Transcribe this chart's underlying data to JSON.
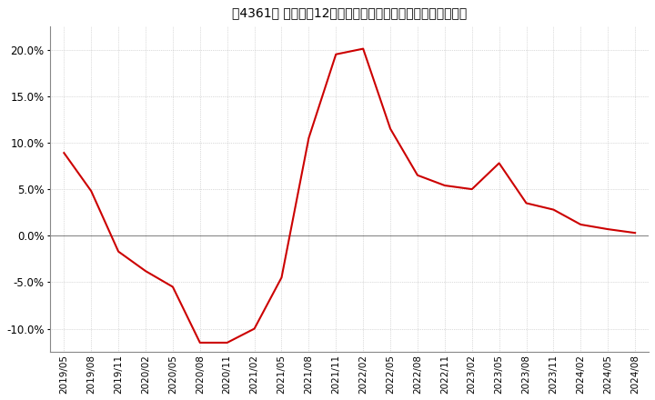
{
  "title": "［4361］ 売上高の12か月移動合計の対前年同期増減率の推移",
  "line_color": "#cc0000",
  "bg_color": "#ffffff",
  "plot_bg_color": "#ffffff",
  "grid_color": "#bbbbbb",
  "zero_line_color": "#888888",
  "ylim": [
    -0.125,
    0.225
  ],
  "yticks": [
    -0.1,
    -0.05,
    0.0,
    0.05,
    0.1,
    0.15,
    0.2
  ],
  "x_labels": [
    "2019/05",
    "2019/08",
    "2019/11",
    "2020/02",
    "2020/05",
    "2020/08",
    "2020/11",
    "2021/02",
    "2021/05",
    "2021/08",
    "2021/11",
    "2022/02",
    "2022/05",
    "2022/08",
    "2022/11",
    "2023/02",
    "2023/05",
    "2023/08",
    "2023/11",
    "2024/02",
    "2024/05",
    "2024/08"
  ],
  "values": [
    0.089,
    0.048,
    -0.017,
    -0.038,
    -0.055,
    -0.115,
    -0.115,
    -0.1,
    -0.045,
    0.105,
    0.195,
    0.201,
    0.115,
    0.065,
    0.054,
    0.05,
    0.078,
    0.035,
    0.028,
    0.012,
    0.007,
    0.003
  ],
  "title_fontsize": 11,
  "xlabel_fontsize": 7.5,
  "ylabel_fontsize": 8.5,
  "linewidth": 1.5
}
